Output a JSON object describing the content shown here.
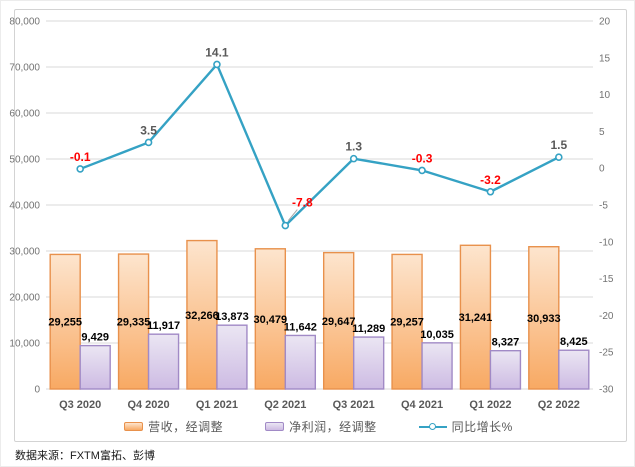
{
  "source_note": "数据来源：FXTM富拓、彭博",
  "colors": {
    "grid": "#d9d9d9",
    "axis_text": "#737373",
    "category_text": "#595959",
    "bar_label": "#000000",
    "line_label_positive": "#595959",
    "line_label_negative": "#ff0000",
    "leader_line": "#a6a6a6",
    "frame_border": "#d3d3d3"
  },
  "chart_data": {
    "type": "combo-bar-line",
    "categories": [
      "Q3 2020",
      "Q4 2020",
      "Q1 2021",
      "Q2 2021",
      "Q3 2021",
      "Q4 2021",
      "Q1 2022",
      "Q2 2022"
    ],
    "series": [
      {
        "name": "营收，经调整",
        "type": "bar",
        "axis": "left",
        "values": [
          29255,
          29335,
          32266,
          30479,
          29647,
          29257,
          31241,
          30933
        ],
        "labels": [
          "29,255",
          "29,335",
          "32,266",
          "30,479",
          "29,647",
          "29,257",
          "31,241",
          "30,933"
        ],
        "fill_top": "#fde5ce",
        "fill_bottom": "#f8a963",
        "border": "#e8914c"
      },
      {
        "name": "净利润，经调整",
        "type": "bar",
        "axis": "left",
        "values": [
          9429,
          11917,
          13873,
          11642,
          11289,
          10035,
          8327,
          8425
        ],
        "labels": [
          "9,429",
          "11,917",
          "13,873",
          "11,642",
          "11,289",
          "10,035",
          "8,327",
          "8,425"
        ],
        "fill_top": "#ebe6f3",
        "fill_bottom": "#cdbbe3",
        "border": "#a18ac6"
      },
      {
        "name": "同比增长%",
        "type": "line",
        "axis": "right",
        "values": [
          -0.1,
          3.5,
          14.1,
          -7.8,
          1.3,
          -0.3,
          -3.2,
          1.5
        ],
        "labels": [
          "-0.1",
          "3.5",
          "14.1",
          "-7.8",
          "1.3",
          "-0.3",
          "-3.2",
          "1.5"
        ],
        "color": "#35a2c4"
      }
    ],
    "left_axis": {
      "min": 0,
      "max": 80000,
      "step": 10000,
      "tick_labels": [
        "80,000",
        "70,000",
        "60,000",
        "50,000",
        "40,000",
        "30,000",
        "20,000",
        "10,000",
        "0"
      ]
    },
    "right_axis": {
      "min": -30,
      "max": 20,
      "step": 5,
      "tick_labels": [
        "20",
        "15",
        "10",
        "5",
        "0",
        "-5",
        "-10",
        "-15",
        "-20",
        "-25",
        "-30"
      ]
    },
    "legend_position": "bottom",
    "grid": "horizontal"
  }
}
